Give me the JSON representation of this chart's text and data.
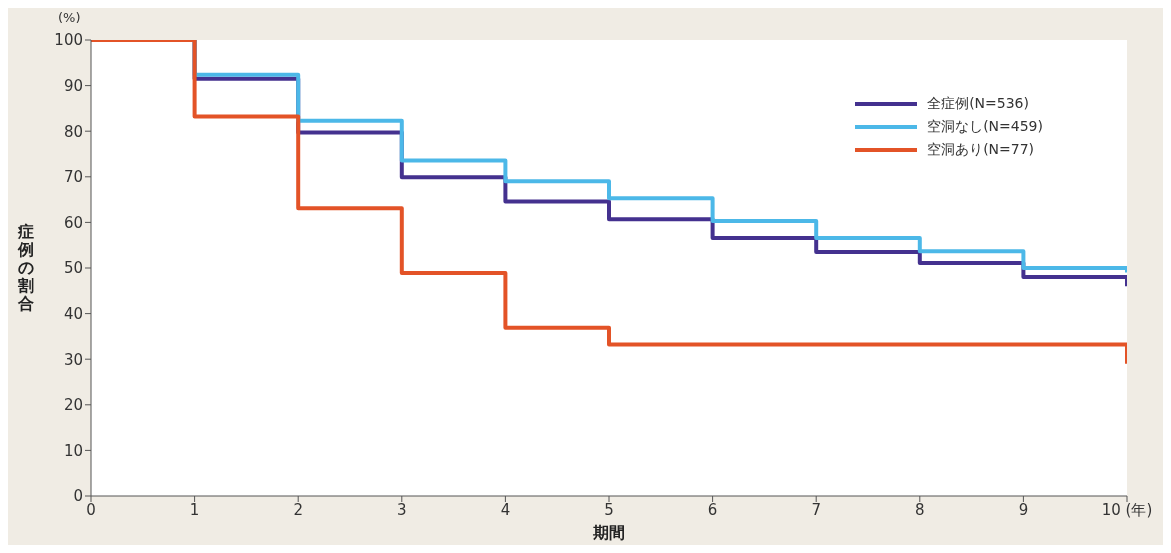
{
  "chart_data": {
    "type": "step",
    "xlabel": "期間",
    "ylabel": "症例の割合",
    "annotations": [
      "(%)"
    ],
    "x": [
      0,
      1,
      2,
      3,
      4,
      5,
      6,
      7,
      8,
      9,
      10,
      10
    ],
    "series": [
      {
        "name": "全症例(N=536)",
        "color": "#44318f",
        "values": [
          100,
          91.5,
          79.7,
          69.9,
          64.6,
          60.7,
          56.6,
          53.5,
          51.1,
          48.0,
          48.0,
          46
        ]
      },
      {
        "name": "空洞なし(N=459)",
        "color": "#4cb8e8",
        "values": [
          100,
          92.4,
          82.3,
          73.6,
          69.0,
          65.3,
          60.3,
          56.6,
          53.7,
          50.0,
          50.0,
          49
        ]
      },
      {
        "name": "空洞あり(N=77)",
        "color": "#e35327",
        "values": [
          100,
          83.2,
          63.1,
          48.9,
          36.9,
          33.2,
          33.2,
          33.2,
          33.2,
          33.2,
          33.2,
          29
        ]
      }
    ],
    "xlim": [
      0,
      10
    ],
    "xticks": [
      0,
      1,
      2,
      3,
      4,
      5,
      6,
      7,
      8,
      9,
      {
        "value": 10,
        "label": "10 (年)"
      }
    ],
    "ylim": [
      0,
      100
    ],
    "yticks": [
      0,
      10,
      20,
      30,
      40,
      50,
      60,
      70,
      80,
      90,
      100
    ],
    "legend": "top right",
    "marker": "none",
    "line_style": "solid"
  }
}
